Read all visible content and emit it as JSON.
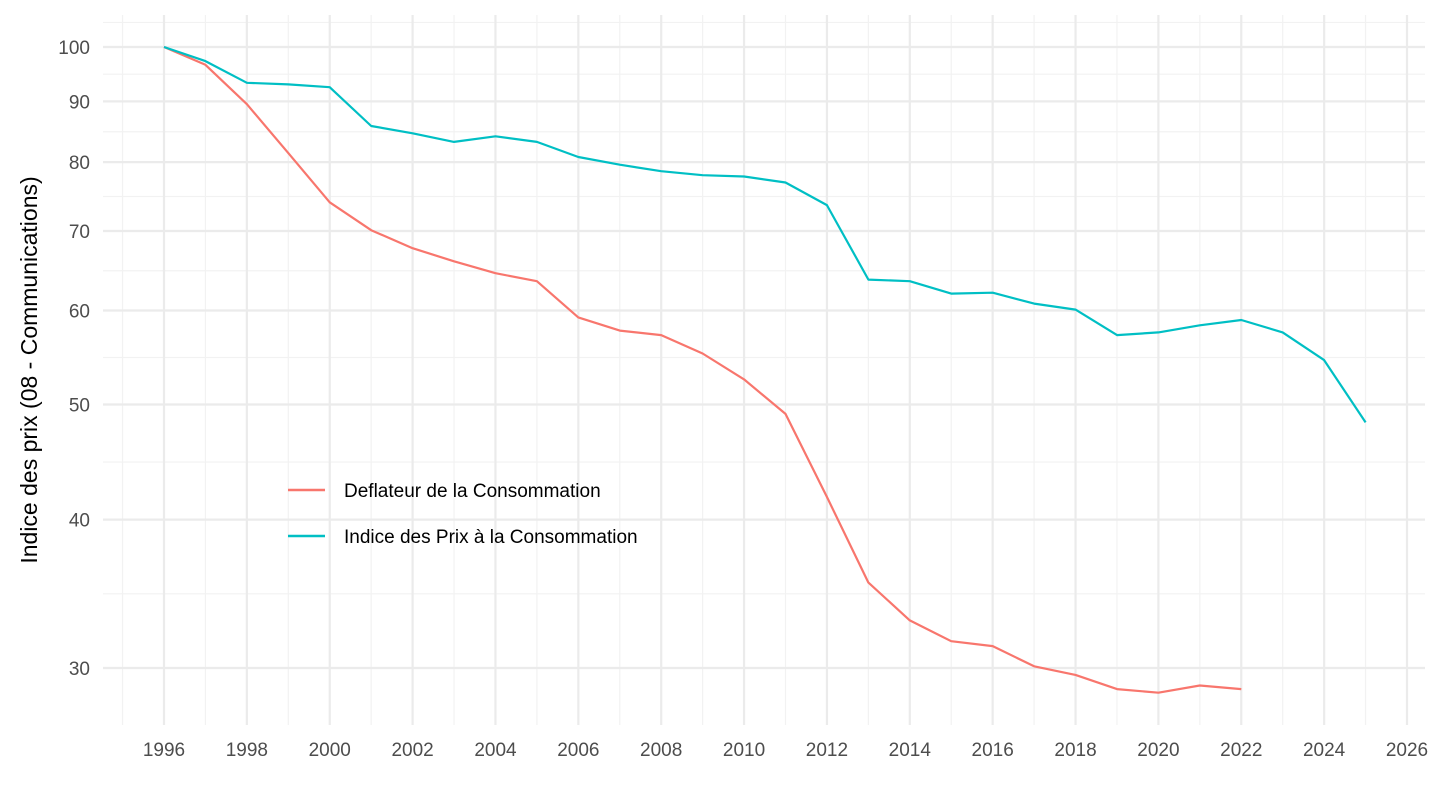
{
  "chart_data": {
    "type": "line",
    "title": "",
    "xlabel": "",
    "ylabel": "Indice des prix (08 - Communications)",
    "y_scale": "log10",
    "xlim": [
      1995,
      2026.5
    ],
    "ylim": [
      27.3,
      106
    ],
    "x_ticks": [
      1996,
      1998,
      2000,
      2002,
      2004,
      2006,
      2008,
      2010,
      2012,
      2014,
      2016,
      2018,
      2020,
      2022,
      2024,
      2026
    ],
    "x_tick_labels": [
      "1996",
      "1998",
      "2000",
      "2002",
      "2004",
      "2006",
      "2008",
      "2010",
      "2012",
      "2014",
      "2016",
      "2018",
      "2020",
      "2022",
      "2024",
      "2026"
    ],
    "y_ticks": [
      30,
      40,
      50,
      60,
      70,
      80,
      90,
      100
    ],
    "y_tick_labels": [
      "30",
      "40",
      "50",
      "60",
      "70",
      "80",
      "90",
      "100"
    ],
    "grid": true,
    "legend_position": "inside-bottom-left",
    "series": [
      {
        "name": "Deflateur de la Consommation",
        "color": "#F8766D",
        "x": [
          1996,
          1997,
          1998,
          1999,
          2000,
          2001,
          2002,
          2003,
          2004,
          2005,
          2006,
          2007,
          2008,
          2009,
          2010,
          2011,
          2012,
          2013,
          2014,
          2015,
          2016,
          2017,
          2018,
          2019,
          2020,
          2021,
          2022
        ],
        "values": [
          100,
          96.6,
          89.5,
          81.4,
          74.0,
          70.1,
          67.7,
          66.0,
          64.5,
          63.5,
          59.2,
          57.7,
          57.2,
          55.2,
          52.5,
          49.1,
          41.8,
          35.4,
          32.9,
          31.6,
          31.3,
          30.1,
          29.6,
          28.8,
          28.6,
          29.0,
          28.8
        ]
      },
      {
        "name": "Indice des Prix à la Consommation",
        "color": "#00BFC4",
        "x": [
          1996,
          1997,
          1998,
          1999,
          2000,
          2001,
          2002,
          2003,
          2004,
          2005,
          2006,
          2007,
          2008,
          2009,
          2010,
          2011,
          2012,
          2013,
          2014,
          2015,
          2016,
          2017,
          2018,
          2019,
          2020,
          2021,
          2022,
          2023,
          2024,
          2025
        ],
        "values": [
          100,
          97.3,
          93.3,
          93.0,
          92.5,
          85.8,
          84.6,
          83.2,
          84.1,
          83.2,
          80.8,
          79.6,
          78.6,
          78.0,
          77.8,
          76.9,
          73.6,
          63.7,
          63.5,
          62.0,
          62.1,
          60.8,
          60.1,
          57.2,
          57.5,
          58.3,
          58.9,
          57.5,
          54.5,
          48.3
        ]
      }
    ]
  }
}
